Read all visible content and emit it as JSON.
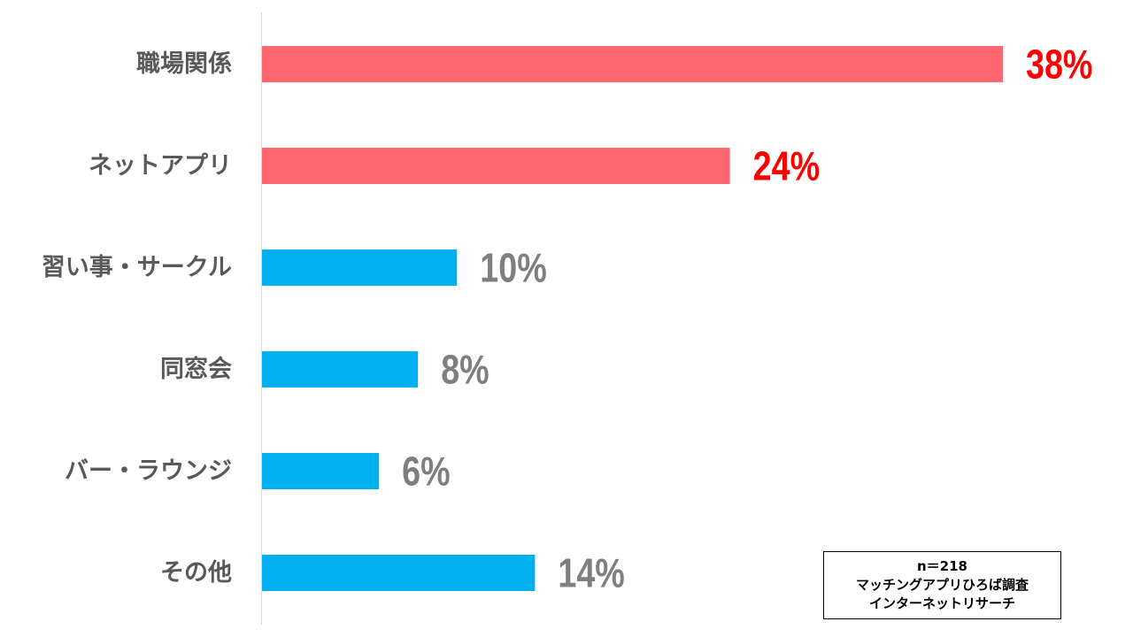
{
  "chart_data": {
    "type": "bar",
    "orientation": "horizontal",
    "categories": [
      "職場関係",
      "ネットアプリ",
      "習い事・サークル",
      "同窓会",
      "バー・ラウンジ",
      "その他"
    ],
    "values": [
      38,
      24,
      10,
      8,
      6,
      14
    ],
    "value_labels": [
      "38%",
      "24%",
      "10%",
      "8%",
      "6%",
      "14%"
    ],
    "unit": "%",
    "xlim": [
      0,
      38
    ],
    "grid": false,
    "colors": {
      "highlight_bar": "#ff6670",
      "normal_bar": "#00b0f0",
      "highlight_label": "#ff0000",
      "normal_label": "#7f7f7f",
      "axis": "#d9d9d9"
    },
    "highlight": [
      true,
      true,
      false,
      false,
      false,
      false
    ]
  },
  "note": {
    "line1": "n＝218",
    "line2": "マッチングアプリひろば調査",
    "line3": "インターネットリサーチ"
  }
}
